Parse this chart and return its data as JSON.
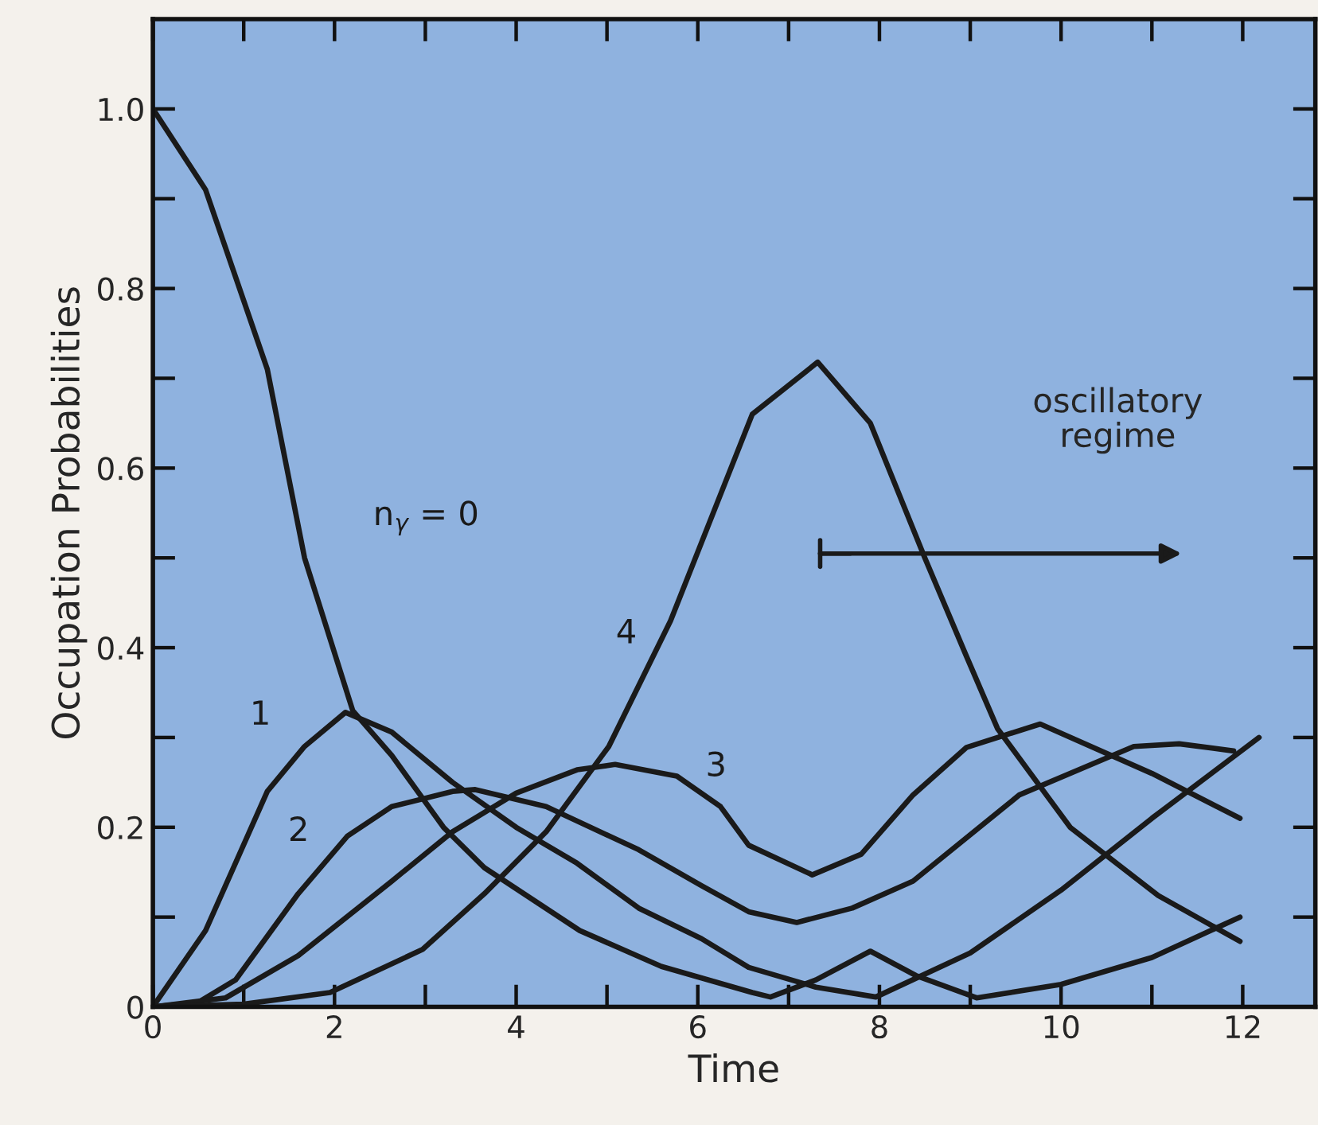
{
  "chart_data": {
    "type": "line",
    "xlabel": "Time",
    "ylabel": "Occupation Probabilities",
    "xlim": [
      0,
      12.8
    ],
    "ylim": [
      0,
      1.1
    ],
    "xticks": [
      0,
      {
        "value": 1,
        "label": null
      },
      2,
      {
        "value": 3,
        "label": null
      },
      4,
      {
        "value": 5,
        "label": null
      },
      6,
      {
        "value": 7,
        "label": null
      },
      8,
      {
        "value": 9,
        "label": null
      },
      10,
      {
        "value": 11,
        "label": null
      },
      12
    ],
    "yticks": [
      {
        "value": 0,
        "label": "0"
      },
      {
        "value": 0.1,
        "label": null
      },
      {
        "value": 0.2,
        "label": "0.2"
      },
      {
        "value": 0.3,
        "label": null
      },
      {
        "value": 0.4,
        "label": "0.4"
      },
      {
        "value": 0.5,
        "label": null
      },
      {
        "value": 0.6,
        "label": "0.6"
      },
      {
        "value": 0.7,
        "label": null
      },
      {
        "value": 0.8,
        "label": "0.8"
      },
      {
        "value": 0.9,
        "label": null
      },
      {
        "value": 1.0,
        "label": "1.0"
      }
    ],
    "grid": false,
    "legend": false,
    "marker": "none",
    "line_style": "solid",
    "series": [
      {
        "name": "n$_{γ}$ = 0",
        "color": "#1a1a1a",
        "x": [
          0,
          0.58,
          1.26,
          1.67,
          2.2,
          2.63,
          3.2,
          3.65,
          4.7,
          5.6,
          6.6,
          6.8,
          7.3,
          7.9,
          8.4,
          9.07,
          10.0,
          11.0,
          11.97
        ],
        "values": [
          1.0,
          0.91,
          0.71,
          0.5,
          0.33,
          0.28,
          0.2,
          0.155,
          0.085,
          0.045,
          0.016,
          0.011,
          0.03,
          0.062,
          0.035,
          0.01,
          0.025,
          0.055,
          0.1
        ]
      },
      {
        "name": "1",
        "color": "#1a1a1a",
        "x": [
          0,
          0.58,
          1.26,
          1.67,
          2.12,
          2.63,
          3.3,
          4.0,
          4.67,
          5.35,
          6.04,
          6.56,
          7.3,
          7.96,
          9.0,
          10.0,
          11.0,
          12.18
        ],
        "values": [
          0,
          0.085,
          0.24,
          0.29,
          0.328,
          0.306,
          0.25,
          0.2,
          0.16,
          0.11,
          0.076,
          0.044,
          0.022,
          0.011,
          0.06,
          0.13,
          0.21,
          0.3
        ]
      },
      {
        "name": "2",
        "color": "#1a1a1a",
        "x": [
          0,
          0.5,
          0.91,
          1.6,
          2.14,
          2.63,
          3.3,
          3.55,
          4.33,
          5.35,
          6.04,
          6.56,
          7.09,
          7.7,
          8.37,
          9.54,
          10.8,
          11.3,
          11.9
        ],
        "values": [
          0,
          0.005,
          0.03,
          0.126,
          0.19,
          0.223,
          0.24,
          0.242,
          0.223,
          0.175,
          0.135,
          0.106,
          0.094,
          0.11,
          0.14,
          0.236,
          0.29,
          0.293,
          0.285
        ]
      },
      {
        "name": "3",
        "color": "#1a1a1a",
        "x": [
          0,
          0.8,
          1.6,
          2.63,
          3.3,
          4.0,
          4.67,
          5.09,
          5.77,
          6.25,
          6.56,
          7.26,
          7.8,
          8.37,
          8.96,
          9.77,
          11.0,
          11.97
        ],
        "values": [
          0,
          0.01,
          0.057,
          0.14,
          0.195,
          0.238,
          0.264,
          0.27,
          0.257,
          0.223,
          0.18,
          0.147,
          0.17,
          0.236,
          0.289,
          0.315,
          0.26,
          0.21
        ]
      },
      {
        "name": "4",
        "color": "#1a1a1a",
        "x": [
          0,
          1.0,
          1.95,
          2.97,
          3.65,
          4.33,
          5.02,
          5.7,
          6.6,
          7.32,
          7.9,
          8.5,
          8.96,
          9.3,
          10.1,
          11.07,
          11.97
        ],
        "values": [
          0,
          0.003,
          0.016,
          0.064,
          0.126,
          0.195,
          0.29,
          0.43,
          0.66,
          0.718,
          0.65,
          0.5,
          0.39,
          0.31,
          0.2,
          0.124,
          0.073
        ]
      }
    ],
    "annotations": [
      "oscillatory\nregime"
    ]
  }
}
